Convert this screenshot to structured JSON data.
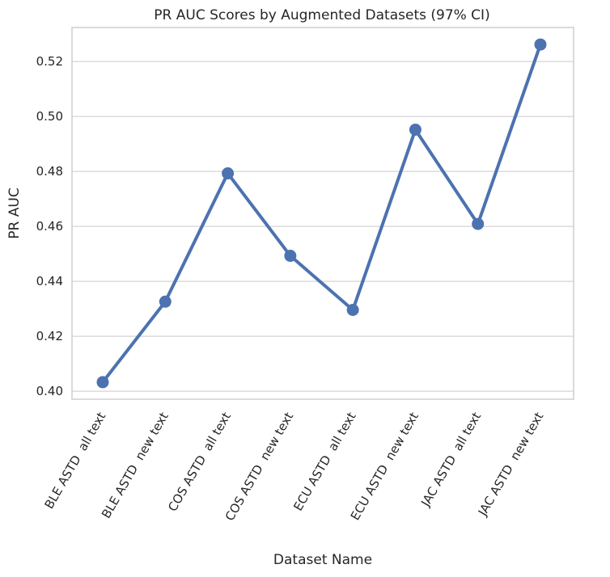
{
  "chart_data": {
    "type": "line",
    "title": "PR AUC Scores by Augmented Datasets (97% CI)",
    "xlabel": "Dataset Name",
    "ylabel": "PR AUC",
    "categories": [
      "BLE ASTD  all text",
      "BLE ASTD  new text",
      "COS ASTD  all text",
      "COS ASTD  new text",
      "ECU ASTD  all text",
      "ECU ASTD  new text",
      "JAC ASTD  all text",
      "JAC ASTD  new text"
    ],
    "series": [
      {
        "values": [
          0.4033,
          0.4326,
          0.4793,
          0.4493,
          0.4296,
          0.4952,
          0.4609,
          0.5262
        ]
      }
    ],
    "yticks": [
      0.4,
      0.42,
      0.44,
      0.46,
      0.48,
      0.5,
      0.52
    ],
    "ytick_labels": [
      "0.40",
      "0.42",
      "0.44",
      "0.46",
      "0.48",
      "0.50",
      "0.52"
    ],
    "ylim": [
      0.3971,
      0.5324
    ],
    "grid": true,
    "line_color": "#4c72b0"
  }
}
